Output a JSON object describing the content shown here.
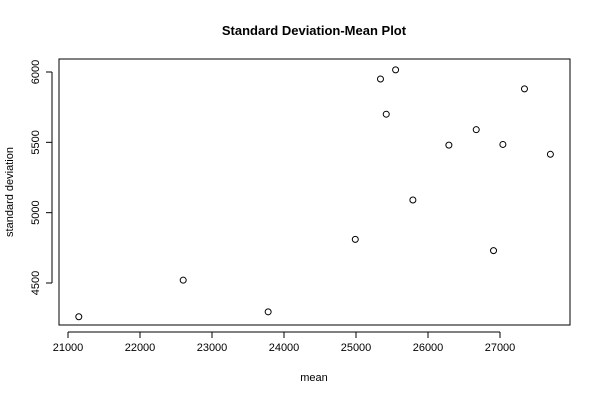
{
  "chart_data": {
    "type": "scatter",
    "title": "Standard Deviation-Mean Plot",
    "xlabel": "mean",
    "ylabel": "standard deviation",
    "xlim": [
      21000,
      28000
    ],
    "ylim": [
      4200,
      6050
    ],
    "x_ticks": [
      21000,
      22000,
      23000,
      24000,
      25000,
      26000,
      27000
    ],
    "y_ticks": [
      4500,
      5000,
      5500,
      6000
    ],
    "grid": false,
    "points": [
      {
        "x": 21150,
        "y": 4260
      },
      {
        "x": 22600,
        "y": 4520
      },
      {
        "x": 23780,
        "y": 4295
      },
      {
        "x": 24990,
        "y": 4810
      },
      {
        "x": 25340,
        "y": 5950
      },
      {
        "x": 25420,
        "y": 5700
      },
      {
        "x": 25550,
        "y": 6015
      },
      {
        "x": 25790,
        "y": 5090
      },
      {
        "x": 26290,
        "y": 5480
      },
      {
        "x": 26670,
        "y": 5590
      },
      {
        "x": 26910,
        "y": 4730
      },
      {
        "x": 27040,
        "y": 5485
      },
      {
        "x": 27340,
        "y": 5880
      },
      {
        "x": 27700,
        "y": 5415
      }
    ]
  }
}
